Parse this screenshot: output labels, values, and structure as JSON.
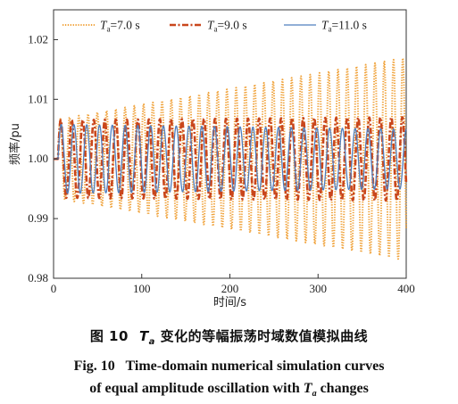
{
  "chart_data": {
    "type": "line",
    "xlabel": "时间/s",
    "ylabel": "频率/pu",
    "xlim": [
      0,
      400
    ],
    "ylim": [
      0.98,
      1.025
    ],
    "xticks": [
      "0",
      "100",
      "200",
      "300",
      "400"
    ],
    "yticks": [
      "0.98",
      "0.99",
      "1.00",
      "1.01",
      "1.02"
    ],
    "grid": false,
    "legend_position": "top",
    "baseline": 1.0,
    "disturbance_time_s": 5,
    "series": [
      {
        "name": "T",
        "name_sub": "a",
        "name_value": "=7.0 s",
        "color": "#f0a23a",
        "style": "dotted",
        "period_s": 10.5,
        "start_amplitude": 0.0065,
        "end_amplitude": 0.017
      },
      {
        "name": "T",
        "name_sub": "a",
        "name_value": "=9.0 s",
        "color": "#c9461c",
        "style": "dash-dot",
        "period_s": 12.5,
        "start_amplitude": 0.0065,
        "end_amplitude": 0.007
      },
      {
        "name": "T",
        "name_sub": "a",
        "name_value": "=11.0 s",
        "color": "#4f7fbf",
        "style": "solid",
        "period_s": 14.5,
        "start_amplitude": 0.0058,
        "end_amplitude": 0.005
      }
    ]
  },
  "caption": {
    "zh_fig": "图 10",
    "zh_sym": "T",
    "zh_sym_sub": "a",
    "zh_text": " 变化的等幅振荡时域数值模拟曲线",
    "en_line1": "Fig. 10   Time-domain numerical simulation curves",
    "en_line2_prefix": "of equal amplitude oscillation with ",
    "en_sym": "T",
    "en_sym_sub": "a",
    "en_line2_suffix": " changes"
  }
}
